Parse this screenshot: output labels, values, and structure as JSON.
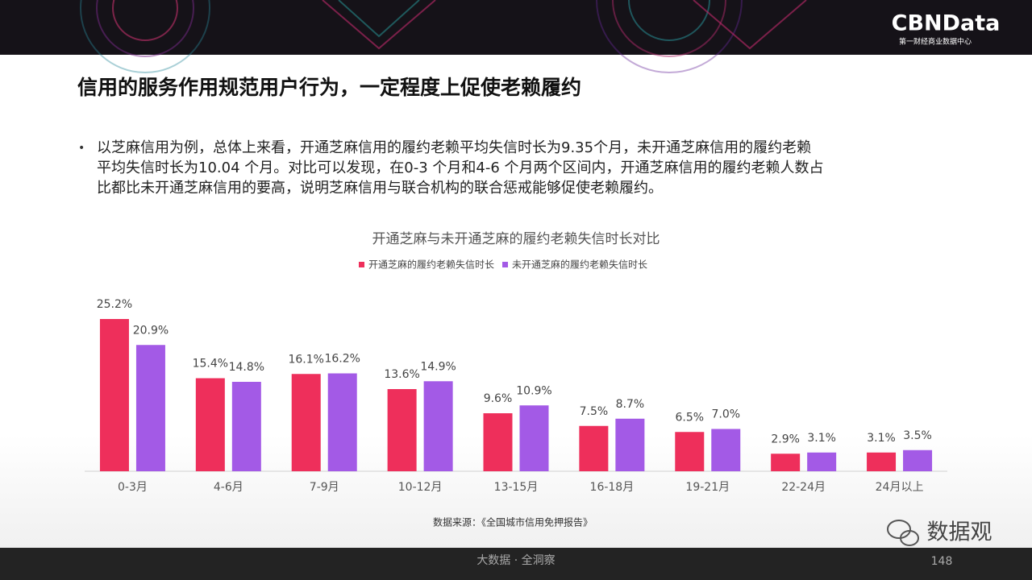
{
  "logo": {
    "name": "CBNData",
    "subtitle": "第一财经商业数据中心"
  },
  "header": {
    "title": "信用的服务作用规范用户行为，一定程度上促使老赖履约"
  },
  "bullet": {
    "lines": [
      "以芝麻信用为例，总体上来看，开通芝麻信用的履约老赖平均失信时长为9.35个月，未开通芝麻信用的履约老赖",
      "平均失信时长为10.04 个月。对比可以发现，在0-3 个月和4-6 个月两个区间内，开通芝麻信用的履约老赖人数占",
      "比都比未开通芝麻信用的要高，说明芝麻信用与联合机构的联合惩戒能够促使老赖履约。"
    ]
  },
  "chart_data": {
    "type": "bar",
    "title": "开通芝麻与未开通芝麻的履约老赖失信时长对比",
    "categories": [
      "0-3月",
      "4-6月",
      "7-9月",
      "10-12月",
      "13-15月",
      "16-18月",
      "19-21月",
      "22-24月",
      "24月以上"
    ],
    "series": [
      {
        "name": "开通芝麻的履约老赖失信时长",
        "color": "#ee2f5b",
        "values": [
          25.2,
          15.4,
          16.1,
          13.6,
          9.6,
          7.5,
          6.5,
          2.9,
          3.1
        ],
        "value_labels": [
          "25.2%",
          "15.4%",
          "16.1%",
          "13.6%",
          "9.6%",
          "7.5%",
          "6.5%",
          "2.9%",
          "3.1%"
        ]
      },
      {
        "name": "未开通芝麻的履约老赖失信时长",
        "color": "#a35ae6",
        "values": [
          20.9,
          14.8,
          16.2,
          14.9,
          10.9,
          8.7,
          7.0,
          3.1,
          3.5
        ],
        "value_labels": [
          "20.9%",
          "14.8%",
          "16.2%",
          "14.9%",
          "10.9%",
          "8.7%",
          "7.0%",
          "3.1%",
          "3.5%"
        ]
      }
    ],
    "legend": "top"
  },
  "source": "数据来源：《全国城市信用免押报告》",
  "footer": {
    "slogan": "大数据 · 全洞察",
    "page": "148"
  },
  "watermark": "数据观"
}
